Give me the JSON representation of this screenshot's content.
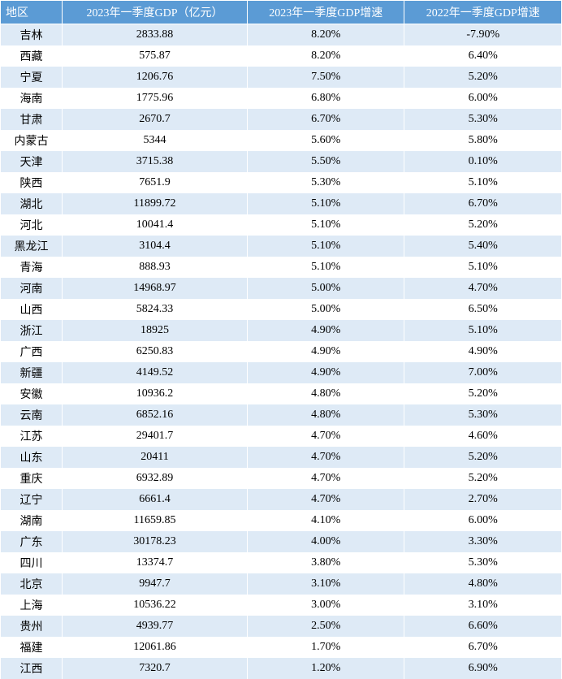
{
  "table": {
    "columns": [
      "地区",
      "2023年一季度GDP（亿元）",
      "2023年一季度GDP增速",
      "2022年一季度GDP增速"
    ],
    "rows": [
      [
        "吉林",
        "2833.88",
        "8.20%",
        "-7.90%"
      ],
      [
        "西藏",
        "575.87",
        "8.20%",
        "6.40%"
      ],
      [
        "宁夏",
        "1206.76",
        "7.50%",
        "5.20%"
      ],
      [
        "海南",
        "1775.96",
        "6.80%",
        "6.00%"
      ],
      [
        "甘肃",
        "2670.7",
        "6.70%",
        "5.30%"
      ],
      [
        "内蒙古",
        "5344",
        "5.60%",
        "5.80%"
      ],
      [
        "天津",
        "3715.38",
        "5.50%",
        "0.10%"
      ],
      [
        "陕西",
        "7651.9",
        "5.30%",
        "5.10%"
      ],
      [
        "湖北",
        "11899.72",
        "5.10%",
        "6.70%"
      ],
      [
        "河北",
        "10041.4",
        "5.10%",
        "5.20%"
      ],
      [
        "黑龙江",
        "3104.4",
        "5.10%",
        "5.40%"
      ],
      [
        "青海",
        "888.93",
        "5.10%",
        "5.10%"
      ],
      [
        "河南",
        "14968.97",
        "5.00%",
        "4.70%"
      ],
      [
        "山西",
        "5824.33",
        "5.00%",
        "6.50%"
      ],
      [
        "浙江",
        "18925",
        "4.90%",
        "5.10%"
      ],
      [
        "广西",
        "6250.83",
        "4.90%",
        "4.90%"
      ],
      [
        "新疆",
        "4149.52",
        "4.90%",
        "7.00%"
      ],
      [
        "安徽",
        "10936.2",
        "4.80%",
        "5.20%"
      ],
      [
        "云南",
        "6852.16",
        "4.80%",
        "5.30%"
      ],
      [
        "江苏",
        "29401.7",
        "4.70%",
        "4.60%"
      ],
      [
        "山东",
        "20411",
        "4.70%",
        "5.20%"
      ],
      [
        "重庆",
        "6932.89",
        "4.70%",
        "5.20%"
      ],
      [
        "辽宁",
        "6661.4",
        "4.70%",
        "2.70%"
      ],
      [
        "湖南",
        "11659.85",
        "4.10%",
        "6.00%"
      ],
      [
        "广东",
        "30178.23",
        "4.00%",
        "3.30%"
      ],
      [
        "四川",
        "13374.7",
        "3.80%",
        "5.30%"
      ],
      [
        "北京",
        "9947.7",
        "3.10%",
        "4.80%"
      ],
      [
        "上海",
        "10536.22",
        "3.00%",
        "3.10%"
      ],
      [
        "贵州",
        "4939.77",
        "2.50%",
        "6.60%"
      ],
      [
        "福建",
        "12061.86",
        "1.70%",
        "6.70%"
      ],
      [
        "江西",
        "7320.7",
        "1.20%",
        "6.90%"
      ]
    ],
    "header_bg": "#5b9bd5",
    "header_color": "#ffffff",
    "row_odd_bg": "#deeaf6",
    "row_even_bg": "#ffffff",
    "text_color": "#000000",
    "font_family": "SimSun",
    "font_size": 14
  }
}
